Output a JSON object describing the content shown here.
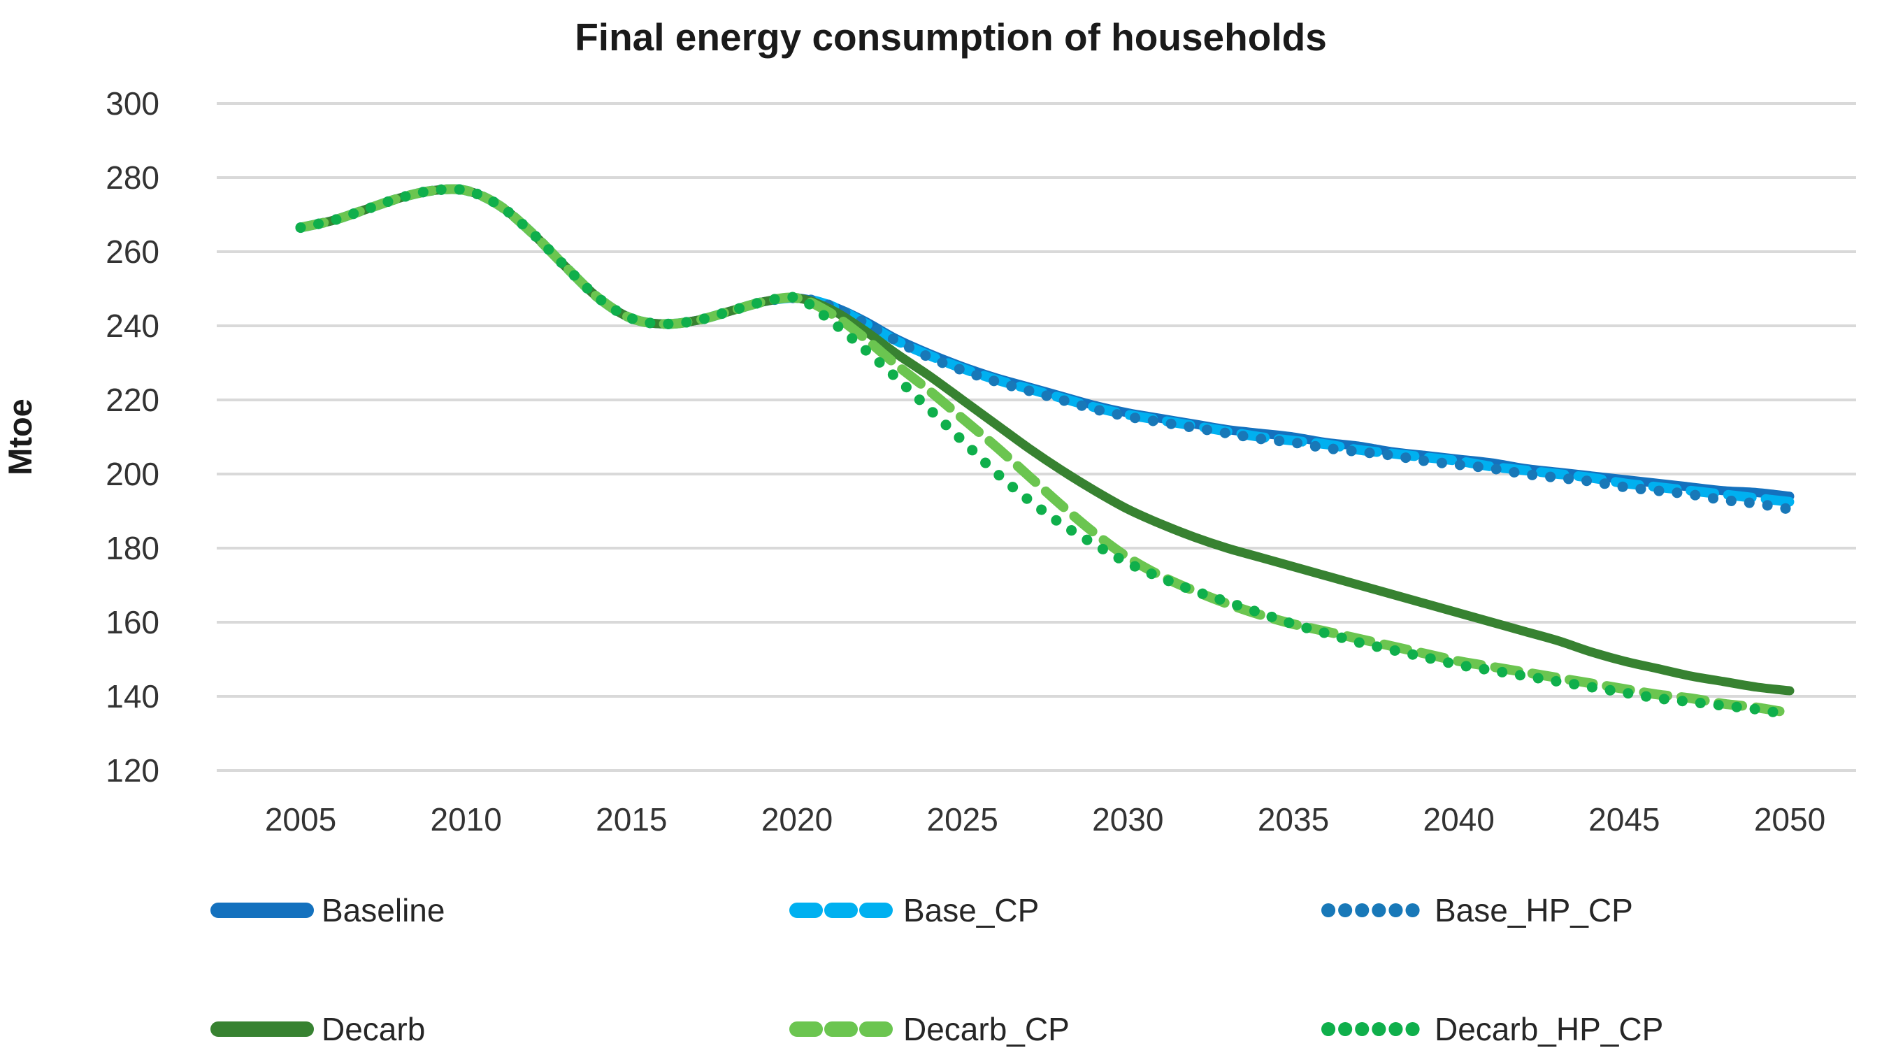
{
  "chart_data": {
    "type": "line",
    "title": "Final energy consumption of households",
    "xlabel": "",
    "ylabel": "Mtoe",
    "grid": "horizontal",
    "grid_color": "#D9D9D9",
    "legend_position": "bottom",
    "ylim": [
      120,
      300
    ],
    "y_ticks": [
      300,
      280,
      260,
      240,
      220,
      200,
      180,
      160,
      140,
      120
    ],
    "x_ticks": [
      2005,
      2010,
      2015,
      2020,
      2025,
      2030,
      2035,
      2040,
      2045,
      2050
    ],
    "years": [
      2005,
      2006,
      2007,
      2008,
      2009,
      2010,
      2011,
      2012,
      2013,
      2014,
      2015,
      2016,
      2017,
      2018,
      2019,
      2020,
      2021,
      2022,
      2023,
      2024,
      2025,
      2026,
      2027,
      2028,
      2029,
      2030,
      2031,
      2032,
      2033,
      2034,
      2035,
      2036,
      2037,
      2038,
      2039,
      2040,
      2041,
      2042,
      2043,
      2044,
      2045,
      2046,
      2047,
      2048,
      2049,
      2050
    ],
    "series": [
      {
        "id": "baseline",
        "name": "Baseline",
        "color": "#1471BE",
        "style": "solid",
        "values": [
          266.5,
          268.5,
          271.5,
          274.5,
          276.5,
          276.5,
          272.5,
          265,
          256,
          247.5,
          242,
          240.5,
          241.5,
          244,
          246.5,
          247.5,
          245.5,
          241.5,
          236.5,
          232.5,
          229,
          226,
          223.5,
          221,
          218.5,
          216.5,
          215,
          213.5,
          212,
          211,
          210,
          208.5,
          207.5,
          206,
          205,
          204,
          203,
          201.5,
          200.5,
          199.5,
          198.5,
          197.5,
          196.5,
          195.5,
          195,
          194
        ]
      },
      {
        "id": "base_cp",
        "name": "Base_CP",
        "color": "#00B0F0",
        "style": "dashed",
        "values": [
          266.5,
          268.5,
          271.5,
          274.5,
          276.5,
          276.5,
          272.5,
          265,
          256,
          247.5,
          242,
          240.5,
          241.5,
          244,
          246.5,
          247.5,
          245.5,
          241,
          236,
          232,
          228.5,
          225.5,
          223,
          220.5,
          218,
          216,
          214.5,
          213,
          211.5,
          210,
          209,
          208,
          206.5,
          205.5,
          204.5,
          203.5,
          202,
          201,
          200,
          199,
          197.5,
          196.5,
          195.5,
          194.5,
          193.5,
          192.5
        ]
      },
      {
        "id": "base_hp_cp",
        "name": "Base_HP_CP",
        "color": "#1878B8",
        "style": "dotted",
        "values": [
          266.5,
          268.5,
          271.5,
          274.5,
          276.5,
          276.5,
          272.5,
          265,
          256,
          247.5,
          242,
          240.5,
          241.5,
          244,
          246.5,
          247.5,
          245.5,
          241,
          236,
          231.5,
          228,
          225,
          222.5,
          220,
          217.5,
          215.5,
          214,
          212.5,
          211,
          209.5,
          208.5,
          207,
          206,
          205,
          203.5,
          202.5,
          201.5,
          200,
          199,
          198,
          196.5,
          195.5,
          194.5,
          193,
          192,
          190.5
        ]
      },
      {
        "id": "decarb",
        "name": "Decarb",
        "color": "#378231",
        "style": "solid",
        "values": [
          266.5,
          268.5,
          271.5,
          274.5,
          276.5,
          276.5,
          272.5,
          265,
          256,
          247.5,
          242,
          240.5,
          241.5,
          244,
          246.5,
          247.5,
          244.5,
          239,
          232.5,
          226.5,
          220,
          213.5,
          207,
          201,
          195.5,
          190.5,
          186.5,
          183,
          180,
          177.5,
          175,
          172.5,
          170,
          167.5,
          165,
          162.5,
          160,
          157.5,
          155,
          152,
          149.5,
          147.5,
          145.5,
          144,
          142.5,
          141.5
        ]
      },
      {
        "id": "decarb_cp",
        "name": "Decarb_CP",
        "color": "#6BC550",
        "style": "dashed",
        "values": [
          266.5,
          268.5,
          271.5,
          274.5,
          276.5,
          276.5,
          272.5,
          265,
          256,
          247.5,
          242,
          240.5,
          241.5,
          244,
          246.5,
          247.5,
          243.5,
          237,
          229.5,
          222.5,
          215,
          207.5,
          199.5,
          191.5,
          184,
          177.5,
          172.5,
          168.5,
          165,
          162,
          159.5,
          157.5,
          155.5,
          153.5,
          151.5,
          149.5,
          148,
          146.5,
          145,
          143.5,
          142,
          140.5,
          139.5,
          138,
          137,
          135.5
        ]
      },
      {
        "id": "decarb_hp_cp",
        "name": "Decarb_HP_CP",
        "color": "#0FAF4B",
        "style": "dotted",
        "values": [
          266.5,
          268.5,
          271.5,
          274.5,
          276.5,
          276.5,
          272.5,
          265,
          256,
          247.5,
          242,
          240.5,
          241.5,
          244,
          246.5,
          247.5,
          241.5,
          234,
          226,
          217.5,
          209,
          200.5,
          193,
          186.5,
          181,
          176,
          172,
          168.5,
          165.5,
          162.5,
          159.5,
          157,
          154.5,
          152.5,
          150.5,
          148.5,
          147,
          145.5,
          144,
          142.5,
          141,
          139.5,
          138.5,
          137.5,
          136.5,
          135
        ]
      }
    ]
  }
}
